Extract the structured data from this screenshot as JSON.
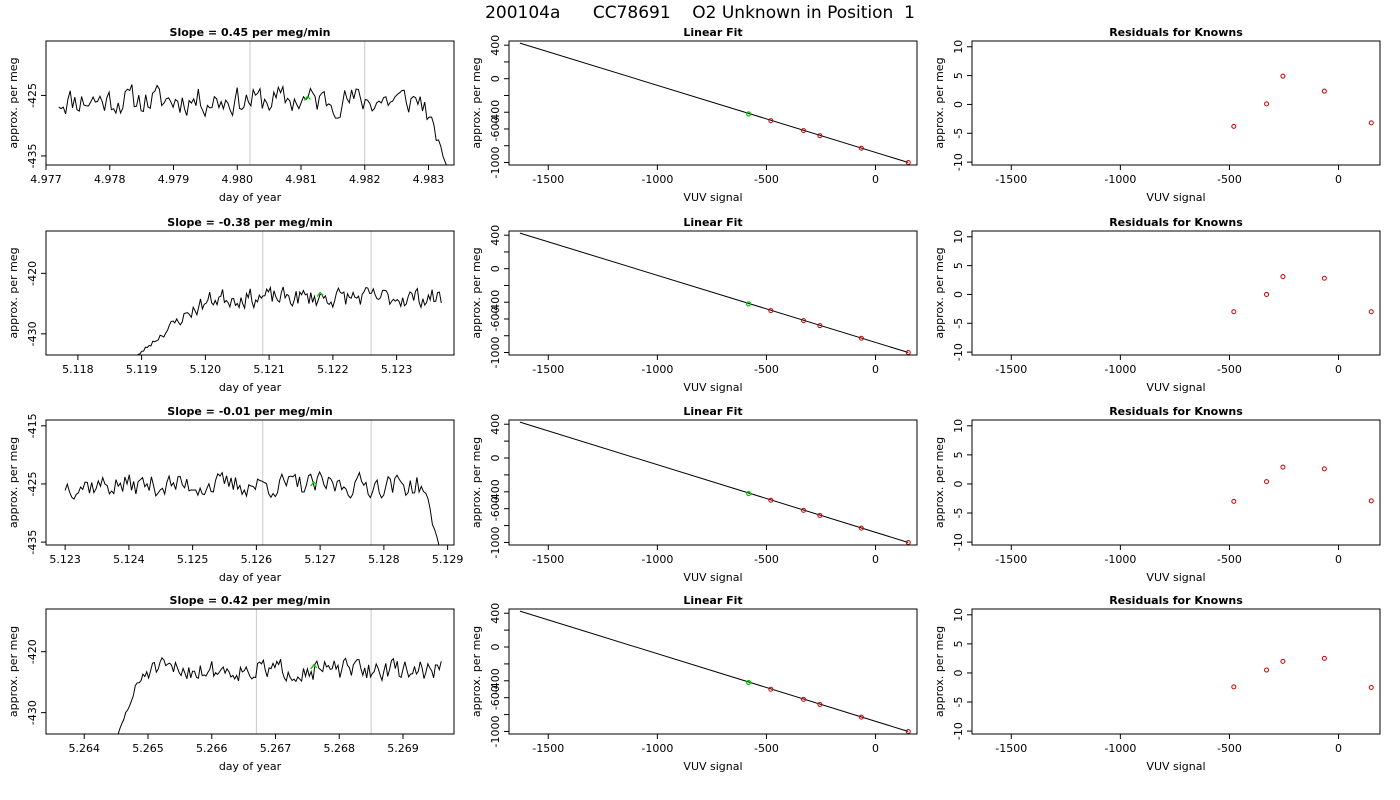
{
  "title": "200104a      CC78691    O2 Unknown in Position  1",
  "colors": {
    "series": "#000000",
    "marker": "#00cc00",
    "known_points": "#cc0000",
    "window_lines": "#c8c8c8",
    "axes": "#000000"
  },
  "chart_data": [
    {
      "type": "line",
      "row": 1,
      "title": "Slope =  0.45  per meg/min",
      "xlabel": "day of year",
      "ylabel": "approx. per meg",
      "xlim": [
        4.977,
        4.9834
      ],
      "ylim": [
        -436.5,
        -416.0
      ],
      "xticks": [
        4.977,
        4.978,
        4.979,
        4.98,
        4.981,
        4.982,
        4.983
      ],
      "xtick_labels": [
        "4.977",
        "4.978",
        "4.979",
        "4.980",
        "4.981",
        "4.982",
        "4.983"
      ],
      "yticks": [
        -435,
        -425
      ],
      "ytick_labels": [
        "-435",
        "-425"
      ],
      "window_lines": [
        4.9802,
        4.982
      ],
      "marker": {
        "x": 4.9811,
        "y": -425.5
      },
      "series_profile": {
        "x_start": 4.9772,
        "x_end": 4.9833,
        "level": -425.8,
        "noise": 2.4,
        "ramp": "end",
        "ramp_span": 0.0004,
        "ramp_to": -437.0,
        "seed": 11
      }
    },
    {
      "type": "line",
      "row": 1,
      "title": "Linear Fit",
      "xlabel": "VUV signal",
      "ylabel": "approx. per meg",
      "xlim": [
        -1680,
        190
      ],
      "ylim": [
        -1030,
        450
      ],
      "xticks": [
        -1500,
        -1000,
        -500,
        0
      ],
      "xtick_labels": [
        "-1500",
        "-1000",
        "-500",
        "0"
      ],
      "yticks": [
        -1000,
        -800,
        -600,
        -400,
        -200,
        0,
        200,
        400
      ],
      "ytick_labels": [
        "-1000",
        "",
        "-600",
        "-400",
        "",
        "0",
        "",
        "400"
      ],
      "fit_line": {
        "x": [
          -1630,
          150
        ],
        "y": [
          425,
          -1000
        ]
      },
      "known_points": {
        "x": [
          -480,
          -330,
          -255,
          -65,
          150
        ],
        "y": [
          -500,
          -620,
          -680,
          -830,
          -1000
        ]
      },
      "unknown_point": {
        "x": -582,
        "y": -420
      }
    },
    {
      "type": "scatter",
      "row": 1,
      "title": "Residuals for Knowns",
      "xlabel": "VUV signal",
      "ylabel": "approx. per meg",
      "xlim": [
        -1680,
        190
      ],
      "ylim": [
        -10.5,
        11
      ],
      "xticks": [
        -1500,
        -1000,
        -500,
        0
      ],
      "xtick_labels": [
        "-1500",
        "-1000",
        "-500",
        "0"
      ],
      "yticks": [
        -10,
        -5,
        0,
        5,
        10
      ],
      "ytick_labels": [
        "-10",
        "-5",
        "0",
        "5",
        "10"
      ],
      "points": {
        "x": [
          -480,
          -330,
          -255,
          -65,
          150
        ],
        "y": [
          -3.8,
          0.1,
          4.9,
          2.3,
          -3.2
        ]
      }
    },
    {
      "type": "line",
      "row": 2,
      "title": "Slope =  -0.38  per meg/min",
      "xlabel": "day of year",
      "ylabel": "approx. per meg",
      "xlim": [
        5.1175,
        5.1239
      ],
      "ylim": [
        -433.5,
        -413.0
      ],
      "xticks": [
        5.118,
        5.119,
        5.12,
        5.121,
        5.122,
        5.123
      ],
      "xtick_labels": [
        "5.118",
        "5.119",
        "5.120",
        "5.121",
        "5.122",
        "5.123"
      ],
      "yticks": [
        -430,
        -420
      ],
      "ytick_labels": [
        "-430",
        "-420"
      ],
      "window_lines": [
        5.1209,
        5.1226
      ],
      "marker": {
        "x": 5.1218,
        "y": -423.5
      },
      "series_profile": {
        "x_start": 5.1188,
        "x_end": 5.1237,
        "level": -424.0,
        "noise": 1.6,
        "ramp": "start",
        "ramp_span": 0.0014,
        "ramp_to": -435.0,
        "seed": 23
      }
    },
    {
      "type": "line",
      "row": 2,
      "title": "Linear Fit",
      "xlabel": "VUV signal",
      "ylabel": "approx. per meg",
      "xlim": [
        -1680,
        190
      ],
      "ylim": [
        -1030,
        450
      ],
      "xticks": [
        -1500,
        -1000,
        -500,
        0
      ],
      "xtick_labels": [
        "-1500",
        "-1000",
        "-500",
        "0"
      ],
      "yticks": [
        -1000,
        -800,
        -600,
        -400,
        -200,
        0,
        200,
        400
      ],
      "ytick_labels": [
        "-1000",
        "",
        "-600",
        "-400",
        "",
        "0",
        "",
        "400"
      ],
      "fit_line": {
        "x": [
          -1630,
          150
        ],
        "y": [
          425,
          -1000
        ]
      },
      "known_points": {
        "x": [
          -480,
          -330,
          -255,
          -65,
          150
        ],
        "y": [
          -500,
          -620,
          -680,
          -830,
          -1000
        ]
      },
      "unknown_point": {
        "x": -582,
        "y": -420
      }
    },
    {
      "type": "scatter",
      "row": 2,
      "title": "Residuals for Knowns",
      "xlabel": "VUV signal",
      "ylabel": "approx. per meg",
      "xlim": [
        -1680,
        190
      ],
      "ylim": [
        -10.5,
        11
      ],
      "xticks": [
        -1500,
        -1000,
        -500,
        0
      ],
      "xtick_labels": [
        "-1500",
        "-1000",
        "-500",
        "0"
      ],
      "yticks": [
        -10,
        -5,
        0,
        5,
        10
      ],
      "ytick_labels": [
        "-10",
        "-5",
        "0",
        "5",
        "10"
      ],
      "points": {
        "x": [
          -480,
          -330,
          -255,
          -65,
          150
        ],
        "y": [
          -3.0,
          0.0,
          3.1,
          2.8,
          -3.0
        ]
      }
    },
    {
      "type": "line",
      "row": 3,
      "title": "Slope =  -0.01  per meg/min",
      "xlabel": "day of year",
      "ylabel": "approx. per meg",
      "xlim": [
        5.1227,
        5.1291
      ],
      "ylim": [
        -435.5,
        -414.0
      ],
      "xticks": [
        5.123,
        5.124,
        5.125,
        5.126,
        5.127,
        5.128,
        5.129
      ],
      "xtick_labels": [
        "5.123",
        "5.124",
        "5.125",
        "5.126",
        "5.127",
        "5.128",
        "5.129"
      ],
      "yticks": [
        -435,
        -425,
        -415
      ],
      "ytick_labels": [
        "-435",
        "-425",
        "-415"
      ],
      "window_lines": [
        5.1261,
        5.1278
      ],
      "marker": {
        "x": 5.1269,
        "y": -425.0
      },
      "series_profile": {
        "x_start": 5.123,
        "x_end": 5.1289,
        "level": -425.2,
        "noise": 2.0,
        "ramp": "end",
        "ramp_span": 0.0003,
        "ramp_to": -437.0,
        "seed": 37
      }
    },
    {
      "type": "line",
      "row": 3,
      "title": "Linear Fit",
      "xlabel": "VUV signal",
      "ylabel": "approx. per meg",
      "xlim": [
        -1680,
        190
      ],
      "ylim": [
        -1030,
        450
      ],
      "xticks": [
        -1500,
        -1000,
        -500,
        0
      ],
      "xtick_labels": [
        "-1500",
        "-1000",
        "-500",
        "0"
      ],
      "yticks": [
        -1000,
        -800,
        -600,
        -400,
        -200,
        0,
        200,
        400
      ],
      "ytick_labels": [
        "-1000",
        "",
        "-600",
        "-400",
        "",
        "0",
        "",
        "400"
      ],
      "fit_line": {
        "x": [
          -1630,
          150
        ],
        "y": [
          425,
          -1000
        ]
      },
      "known_points": {
        "x": [
          -480,
          -330,
          -255,
          -65,
          150
        ],
        "y": [
          -500,
          -620,
          -680,
          -830,
          -1000
        ]
      },
      "unknown_point": {
        "x": -582,
        "y": -420
      }
    },
    {
      "type": "scatter",
      "row": 3,
      "title": "Residuals for Knowns",
      "xlabel": "VUV signal",
      "ylabel": "approx. per meg",
      "xlim": [
        -1680,
        190
      ],
      "ylim": [
        -10.5,
        11
      ],
      "xticks": [
        -1500,
        -1000,
        -500,
        0
      ],
      "xtick_labels": [
        "-1500",
        "-1000",
        "-500",
        "0"
      ],
      "yticks": [
        -10,
        -5,
        0,
        5,
        10
      ],
      "ytick_labels": [
        "-10",
        "-5",
        "0",
        "5",
        "10"
      ],
      "points": {
        "x": [
          -480,
          -330,
          -255,
          -65,
          150
        ],
        "y": [
          -3.0,
          0.4,
          2.9,
          2.6,
          -2.9
        ]
      }
    },
    {
      "type": "line",
      "row": 4,
      "title": "Slope =  0.42  per meg/min",
      "xlabel": "day of year",
      "ylabel": "approx. per meg",
      "xlim": [
        5.2634,
        5.2698
      ],
      "ylim": [
        -433.5,
        -413.0
      ],
      "xticks": [
        5.264,
        5.265,
        5.266,
        5.267,
        5.268,
        5.269
      ],
      "xtick_labels": [
        "5.264",
        "5.265",
        "5.266",
        "5.267",
        "5.268",
        "5.269"
      ],
      "yticks": [
        -430,
        -420
      ],
      "ytick_labels": [
        "-430",
        "-420"
      ],
      "window_lines": [
        5.2667,
        5.2685
      ],
      "marker": {
        "x": 5.2676,
        "y": -422.5
      },
      "series_profile": {
        "x_start": 5.2645,
        "x_end": 5.2696,
        "level": -423.0,
        "noise": 1.7,
        "ramp": "start",
        "ramp_span": 0.0005,
        "ramp_to": -434.5,
        "seed": 51
      }
    },
    {
      "type": "line",
      "row": 4,
      "title": "Linear Fit",
      "xlabel": "VUV signal",
      "ylabel": "approx. per meg",
      "xlim": [
        -1680,
        190
      ],
      "ylim": [
        -1030,
        450
      ],
      "xticks": [
        -1500,
        -1000,
        -500,
        0
      ],
      "xtick_labels": [
        "-1500",
        "-1000",
        "-500",
        "0"
      ],
      "yticks": [
        -1000,
        -800,
        -600,
        -400,
        -200,
        0,
        200,
        400
      ],
      "ytick_labels": [
        "-1000",
        "",
        "-600",
        "-400",
        "",
        "0",
        "",
        "400"
      ],
      "fit_line": {
        "x": [
          -1630,
          150
        ],
        "y": [
          425,
          -1000
        ]
      },
      "known_points": {
        "x": [
          -480,
          -330,
          -255,
          -65,
          150
        ],
        "y": [
          -500,
          -620,
          -680,
          -830,
          -1000
        ]
      },
      "unknown_point": {
        "x": -582,
        "y": -420
      }
    },
    {
      "type": "scatter",
      "row": 4,
      "title": "Residuals for Knowns",
      "xlabel": "VUV signal",
      "ylabel": "approx. per meg",
      "xlim": [
        -1680,
        190
      ],
      "ylim": [
        -10.5,
        11
      ],
      "xticks": [
        -1500,
        -1000,
        -500,
        0
      ],
      "xtick_labels": [
        "-1500",
        "-1000",
        "-500",
        "0"
      ],
      "yticks": [
        -10,
        -5,
        0,
        5,
        10
      ],
      "ytick_labels": [
        "-10",
        "-5",
        "0",
        "5",
        "10"
      ],
      "points": {
        "x": [
          -480,
          -330,
          -255,
          -65,
          150
        ],
        "y": [
          -2.4,
          0.5,
          2.0,
          2.5,
          -2.5
        ]
      }
    }
  ]
}
